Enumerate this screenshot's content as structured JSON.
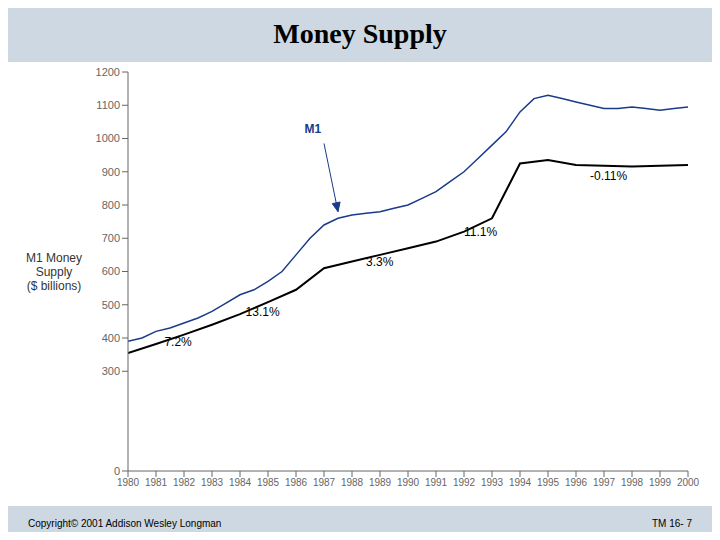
{
  "chart_data": {
    "type": "line",
    "title": "Money Supply",
    "y_label": "M1 Money\nSupply\n($ billions)",
    "xlim": [
      1980,
      2000
    ],
    "ylim": [
      0,
      1200
    ],
    "xticks": [
      1980,
      1981,
      1982,
      1983,
      1984,
      1985,
      1986,
      1987,
      1988,
      1989,
      1990,
      1991,
      1992,
      1993,
      1994,
      1995,
      1996,
      1997,
      1998,
      1999,
      2000
    ],
    "yticks": [
      0,
      300,
      400,
      500,
      600,
      700,
      800,
      900,
      1000,
      1100,
      1200
    ],
    "grid": false,
    "series": [
      {
        "color": "#1a3a8a",
        "x": [
          1980,
          1980.5,
          1981,
          1981.5,
          1982,
          1982.5,
          1983,
          1983.5,
          1984,
          1984.5,
          1985,
          1985.5,
          1986,
          1986.5,
          1987,
          1987.5,
          1988,
          1988.5,
          1989,
          1989.5,
          1990,
          1990.5,
          1991,
          1991.5,
          1992,
          1992.5,
          1993,
          1993.5,
          1994,
          1994.5,
          1995,
          1995.5,
          1996,
          1996.5,
          1997,
          1997.5,
          1998,
          1998.5,
          1999,
          1999.5,
          2000
        ],
        "values": [
          390,
          400,
          420,
          430,
          445,
          460,
          480,
          505,
          530,
          545,
          570,
          600,
          650,
          700,
          740,
          760,
          770,
          775,
          780,
          790,
          800,
          820,
          840,
          870,
          900,
          940,
          980,
          1020,
          1080,
          1120,
          1130,
          1120,
          1110,
          1100,
          1090,
          1090,
          1095,
          1090,
          1085,
          1090,
          1095
        ]
      },
      {
        "color": "#000000",
        "x": [
          1980,
          1981,
          1982,
          1983,
          1984,
          1985,
          1986,
          1987,
          1988,
          1989,
          1990,
          1991,
          1992,
          1993,
          1994,
          1995,
          1996,
          1997,
          1998,
          1999,
          2000
        ],
        "values": [
          355,
          382,
          410,
          440,
          472,
          508,
          545,
          610,
          630,
          650,
          670,
          690,
          720,
          760,
          925,
          935,
          920,
          918,
          916,
          918,
          920
        ]
      }
    ],
    "annotations": [
      {
        "text": "7.2%",
        "x": 1981.3,
        "y": 370
      },
      {
        "text": "13.1%",
        "x": 1984.2,
        "y": 460
      },
      {
        "text": "3.3%",
        "x": 1988.5,
        "y": 610
      },
      {
        "text": "11.1%",
        "x": 1992.0,
        "y": 700
      },
      {
        "text": "-0.11%",
        "x": 1996.5,
        "y": 870
      },
      {
        "text": "M1",
        "x": 1986.3,
        "y": 1010,
        "color": "#1a3a8a",
        "arrow": {
          "from": [
            1987.0,
            985
          ],
          "to": [
            1987.5,
            780
          ]
        }
      },
      {
        "text": "Copyright© 2001 Addison Wesley Longman"
      },
      {
        "text": "TM 16- 7"
      }
    ]
  }
}
